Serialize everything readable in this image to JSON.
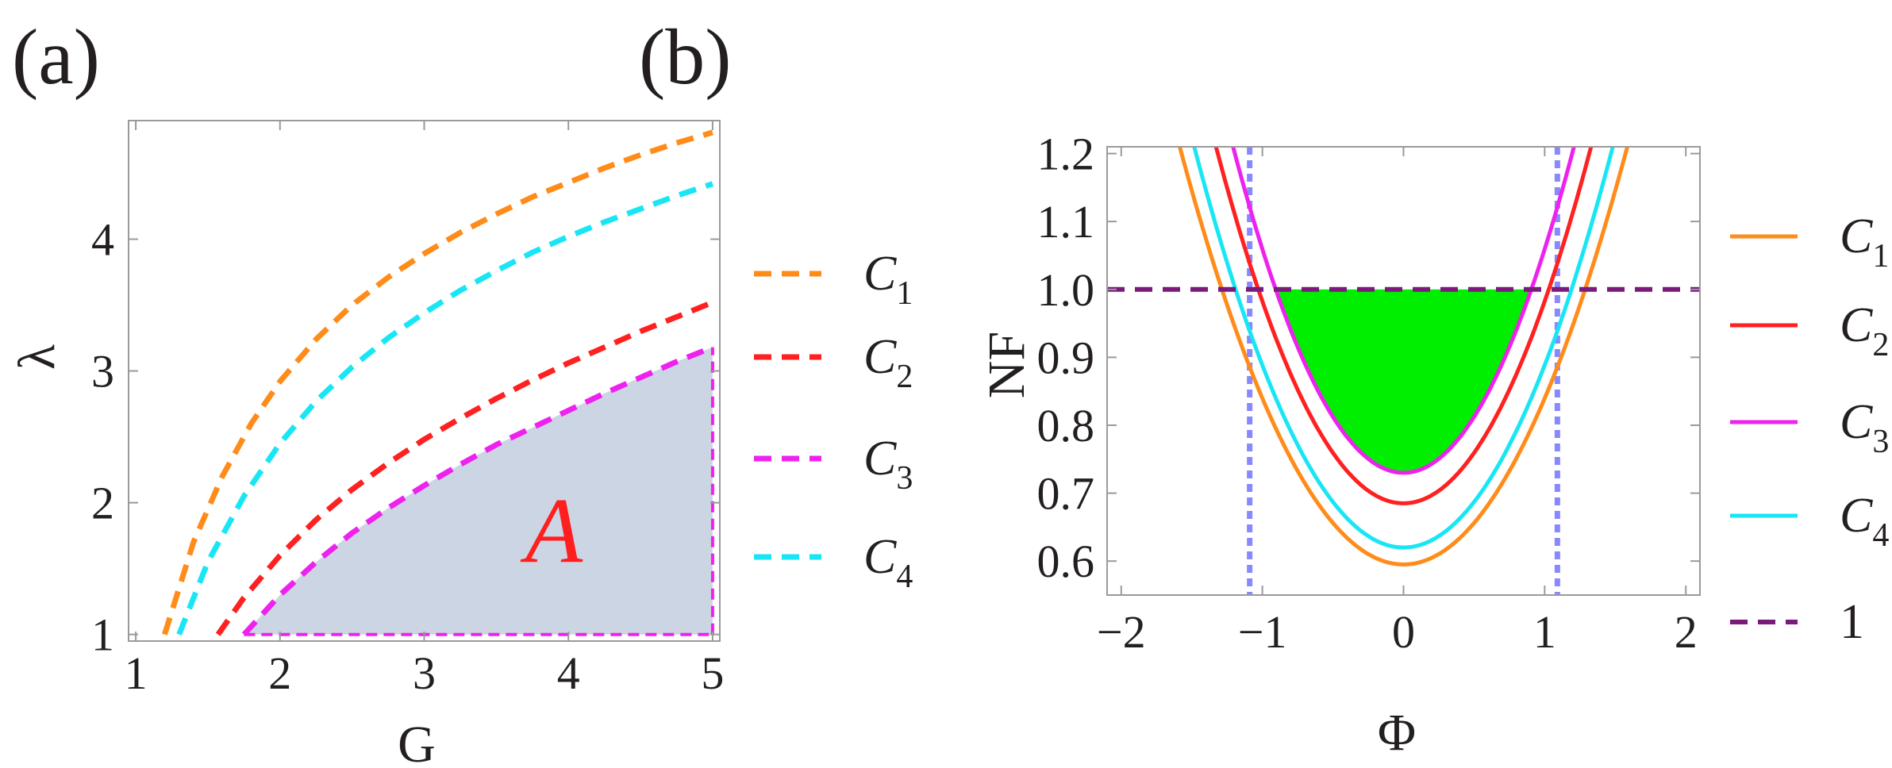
{
  "chart_data": [
    {
      "panel": "(a)",
      "type": "line",
      "xlabel": "G",
      "ylabel": "λ",
      "xlim": [
        0.95,
        5.05
      ],
      "ylim": [
        0.95,
        4.9
      ],
      "xticks": [
        1,
        2,
        3,
        4,
        5
      ],
      "yticks": [
        1,
        2,
        3,
        4
      ],
      "region_label": "A",
      "region_color": "#ccd5e4",
      "region_edge_color": "#ee22ee",
      "series": [
        {
          "name": "C",
          "sub": "1",
          "color": "#ff8c1a",
          "style": "dashed",
          "x": [
            1.2,
            1.4,
            1.6,
            1.8,
            2.0,
            2.25,
            2.5,
            2.75,
            3.0,
            3.25,
            3.5,
            3.75,
            4.0,
            4.25,
            4.5,
            4.75,
            5.0
          ],
          "y": [
            1.0,
            1.7,
            2.2,
            2.6,
            2.92,
            3.24,
            3.5,
            3.71,
            3.89,
            4.05,
            4.19,
            4.32,
            4.43,
            4.54,
            4.64,
            4.73,
            4.81
          ]
        },
        {
          "name": "C",
          "sub": "2",
          "color": "#ff2020",
          "style": "dashed",
          "x": [
            1.57,
            1.75,
            2.0,
            2.25,
            2.5,
            2.75,
            3.0,
            3.25,
            3.5,
            3.75,
            4.0,
            4.25,
            4.5,
            4.75,
            5.0
          ],
          "y": [
            1.0,
            1.28,
            1.6,
            1.87,
            2.1,
            2.3,
            2.48,
            2.64,
            2.79,
            2.93,
            3.06,
            3.18,
            3.3,
            3.41,
            3.52
          ]
        },
        {
          "name": "C",
          "sub": "3",
          "color": "#ee22ee",
          "style": "dashed",
          "x": [
            1.75,
            2.0,
            2.25,
            2.5,
            2.75,
            3.0,
            3.25,
            3.5,
            3.75,
            4.0,
            4.25,
            4.5,
            4.75,
            5.0
          ],
          "y": [
            1.0,
            1.3,
            1.55,
            1.77,
            1.96,
            2.13,
            2.29,
            2.44,
            2.57,
            2.7,
            2.83,
            2.95,
            3.07,
            3.18
          ]
        },
        {
          "name": "C",
          "sub": "4",
          "color": "#19e6f5",
          "style": "dashed",
          "x": [
            1.3,
            1.5,
            1.75,
            2.0,
            2.25,
            2.5,
            2.75,
            3.0,
            3.25,
            3.5,
            3.75,
            4.0,
            4.25,
            4.5,
            4.75,
            5.0
          ],
          "y": [
            1.0,
            1.55,
            2.05,
            2.45,
            2.77,
            3.03,
            3.25,
            3.44,
            3.61,
            3.76,
            3.9,
            4.02,
            4.13,
            4.23,
            4.33,
            4.42
          ]
        }
      ]
    },
    {
      "panel": "(b)",
      "type": "line",
      "xlabel": "Φ",
      "ylabel": "NF",
      "xlim": [
        -2.1,
        2.1
      ],
      "ylim": [
        0.55,
        1.21
      ],
      "xticks": [
        -2,
        -1,
        0,
        1,
        2
      ],
      "yticks": [
        "0.6",
        "0.7",
        "0.8",
        "0.9",
        "1.0",
        "1.1",
        "1.2"
      ],
      "vertical_markers": [
        -1.09,
        1.09
      ],
      "vertical_marker_color": "#8888ff",
      "fill_color": "#00ee00",
      "fill_between": {
        "series": "C3",
        "below": 1.0
      },
      "series": [
        {
          "name": "C",
          "sub": "1",
          "color": "#ff8c1a",
          "style": "solid",
          "vertex": 0.595,
          "a": 0.2446
        },
        {
          "name": "C",
          "sub": "2",
          "color": "#ff2020",
          "style": "solid",
          "vertex": 0.685,
          "a": 0.2975
        },
        {
          "name": "C",
          "sub": "3",
          "color": "#ee22ee",
          "style": "solid",
          "vertex": 0.73,
          "a": 0.3293
        },
        {
          "name": "C",
          "sub": "4",
          "color": "#19e6f5",
          "style": "solid",
          "vertex": 0.62,
          "a": 0.2684
        },
        {
          "name": "1",
          "sub": "",
          "color": "#7a1a7a",
          "style": "dashed",
          "constant": 1.0
        }
      ]
    }
  ]
}
